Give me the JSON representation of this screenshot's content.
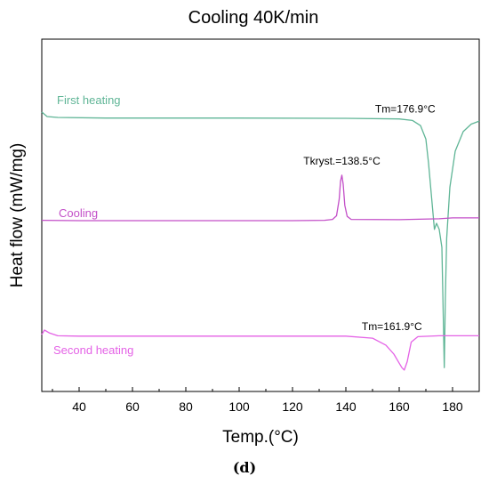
{
  "chart_data": {
    "type": "line",
    "title": "Cooling 40K/min",
    "xlabel": "Temp.(°C)",
    "ylabel": "Heat flow (mW/mg)",
    "xlim": [
      26,
      190
    ],
    "ylim": [
      0,
      100
    ],
    "x_ticks": [
      40,
      60,
      80,
      100,
      120,
      140,
      160,
      180
    ],
    "y_tick_labels": false,
    "grid": false,
    "panel_label": "(d)",
    "series": [
      {
        "name": "First heating",
        "color": "#5fb596",
        "points": [
          [
            26,
            87
          ],
          [
            28,
            85.5
          ],
          [
            32,
            85.2
          ],
          [
            50,
            85.0
          ],
          [
            100,
            85.0
          ],
          [
            140,
            84.9
          ],
          [
            160,
            84.7
          ],
          [
            165,
            84.2
          ],
          [
            168,
            82.5
          ],
          [
            170,
            78
          ],
          [
            171,
            70
          ],
          [
            172,
            60
          ],
          [
            172.8,
            52
          ],
          [
            173.2,
            48
          ],
          [
            174,
            50
          ],
          [
            175,
            48
          ],
          [
            176,
            42
          ],
          [
            176.5,
            20
          ],
          [
            176.9,
            2
          ],
          [
            177.3,
            25
          ],
          [
            177.8,
            45
          ],
          [
            179,
            62
          ],
          [
            181,
            74
          ],
          [
            184,
            80.5
          ],
          [
            187,
            83
          ],
          [
            190,
            84
          ]
        ]
      },
      {
        "name": "Cooling",
        "color": "#c34fc8",
        "points": [
          [
            26,
            51
          ],
          [
            40,
            50.9
          ],
          [
            80,
            50.9
          ],
          [
            120,
            50.9
          ],
          [
            132,
            51
          ],
          [
            135,
            51.3
          ],
          [
            136.5,
            52.5
          ],
          [
            137.5,
            58
          ],
          [
            138.0,
            64
          ],
          [
            138.5,
            66
          ],
          [
            139,
            63
          ],
          [
            139.6,
            56
          ],
          [
            140.5,
            52.3
          ],
          [
            142,
            51.3
          ],
          [
            160,
            51.2
          ],
          [
            175,
            51.5
          ],
          [
            180,
            51.8
          ],
          [
            190,
            51.8
          ]
        ]
      },
      {
        "name": "Second heating",
        "color": "#e462e6",
        "points": [
          [
            26,
            13
          ],
          [
            27,
            14.5
          ],
          [
            29,
            13.5
          ],
          [
            32,
            12.6
          ],
          [
            40,
            12.5
          ],
          [
            100,
            12.5
          ],
          [
            140,
            12.5
          ],
          [
            150,
            11.8
          ],
          [
            155,
            9.5
          ],
          [
            158,
            6.5
          ],
          [
            160,
            3.5
          ],
          [
            161,
            2
          ],
          [
            161.9,
            1.2
          ],
          [
            163,
            4
          ],
          [
            164.5,
            10.5
          ],
          [
            167,
            12.3
          ],
          [
            175,
            12.6
          ],
          [
            190,
            12.6
          ]
        ]
      }
    ],
    "annotations": [
      {
        "text": "Tm=176.9°C",
        "x": 176.9,
        "y": 85.0
      },
      {
        "text": "Tkryst.=138.5°C",
        "x": 138.5,
        "y": 66
      },
      {
        "text": "Tm=161.9°C",
        "x": 161.9,
        "y": 12.5
      }
    ],
    "legend": "curve labels placed at left of each curve"
  }
}
